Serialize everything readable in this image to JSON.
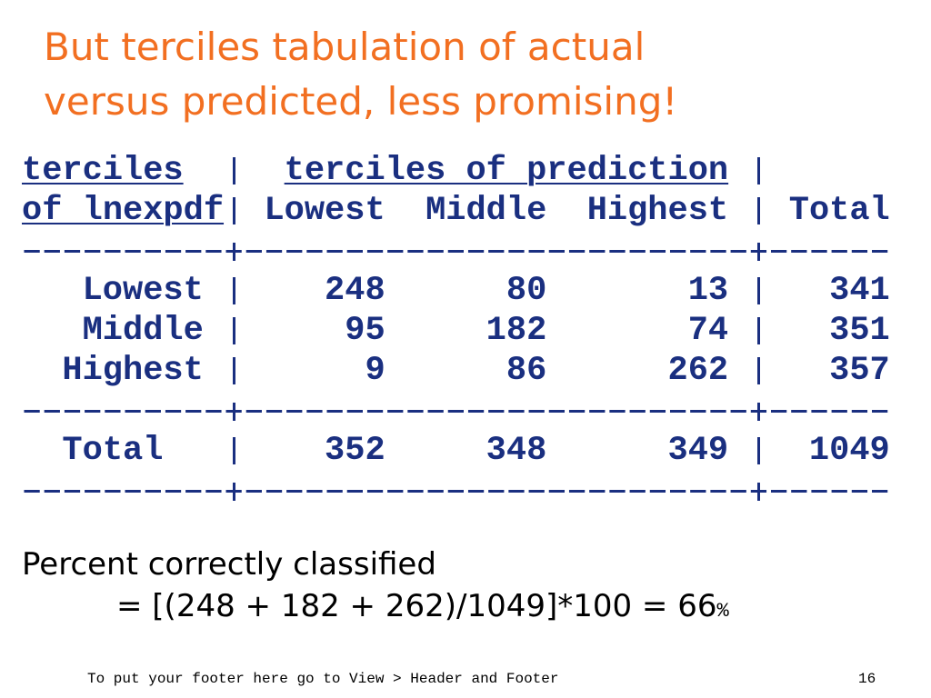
{
  "title": [
    "But terciles tabulation of actual",
    "versus predicted, less promising!"
  ],
  "table": {
    "header": {
      "row_var": [
        "terciles",
        "of lnexpdf"
      ],
      "col_var": "terciles of prediction",
      "columns": [
        "Lowest",
        "Middle",
        "Highest"
      ],
      "total": "Total"
    },
    "rows": [
      {
        "label": "Lowest",
        "values": [
          248,
          80,
          13
        ],
        "total": 341
      },
      {
        "label": "Middle",
        "values": [
          95,
          182,
          74
        ],
        "total": 351
      },
      {
        "label": "Highest",
        "values": [
          9,
          86,
          262
        ],
        "total": 357
      }
    ],
    "total_row": {
      "label": "Total",
      "values": [
        352,
        348,
        349
      ],
      "total": 1049
    }
  },
  "note": {
    "text": "Percent correctly classified",
    "formula": "= [(248 + 182 + 262)/1049]*100 = 66",
    "formula_suffix": "%"
  },
  "footer": {
    "text": "To put your footer here go to View > Header and Footer",
    "page": 16
  }
}
